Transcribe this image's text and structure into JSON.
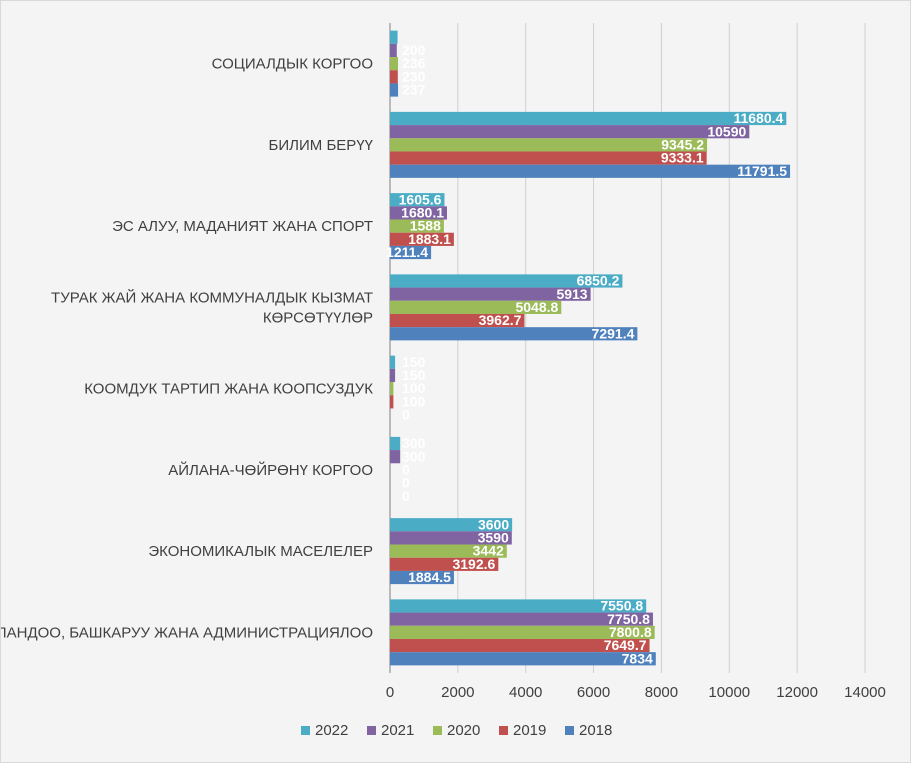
{
  "chart_data": {
    "type": "bar",
    "orientation": "horizontal",
    "categories": [
      "СОЦИАЛДЫК КОРГОО",
      "БИЛИМ БЕРҮҮ",
      "ЭС АЛУУ, МАДАНИЯТ ЖАНА СПОРТ",
      "ТУРАК ЖАЙ ЖАНА КОММУНАЛДЫК КЫЗМАТ КӨРСӨТҮҮЛӨР",
      "КООМДУК ТАРТИП ЖАНА КООПСУЗДУК",
      "АЙЛАНА-ЧӨЙРӨНҮ КОРГОО",
      "ЭКОНОМИКАЛЫК МАСЕЛЕЛЕР",
      "ПЛАНДОО, БАШКАРУУ ЖАНА АДМИНИСТРАЦИЯЛОО"
    ],
    "series": [
      {
        "name": "2022",
        "color": "#4bacc6",
        "values": [
          223,
          11680.4,
          1605.6,
          6850.2,
          150,
          300,
          3600,
          7550.8
        ],
        "labels": [
          "",
          "11680.4",
          "1605.6",
          "6850.2",
          "150",
          "300",
          "3600",
          "7550.8"
        ]
      },
      {
        "name": "2021",
        "color": "#8064a2",
        "values": [
          200,
          10590,
          1680.1,
          5913,
          150,
          300,
          3590,
          7750.8
        ],
        "labels": [
          "200",
          "10590",
          "1680.1",
          "5913",
          "150",
          "300",
          "3590",
          "7750.8"
        ]
      },
      {
        "name": "2020",
        "color": "#9bbb59",
        "values": [
          236,
          9345.2,
          1588,
          5048.8,
          100,
          0,
          3442,
          7800.8
        ],
        "labels": [
          "236",
          "9345.2",
          "1588",
          "5048.8",
          "100",
          "0",
          "3442",
          "7800.8"
        ]
      },
      {
        "name": "2019",
        "color": "#c0504d",
        "values": [
          230,
          9333.1,
          1883.1,
          3962.7,
          100,
          0,
          3192.6,
          7649.7
        ],
        "labels": [
          "230",
          "9333.1",
          "1883.1",
          "3962.7",
          "100",
          "0",
          "3192.6",
          "7649.7"
        ]
      },
      {
        "name": "2018",
        "color": "#4f81bd",
        "values": [
          237,
          11791.5,
          1211.4,
          7291.4,
          0,
          0,
          1884.5,
          7834
        ],
        "labels": [
          "237",
          "11791.5",
          "1211.4",
          "7291.4",
          "0",
          "0",
          "1884.5",
          "7834"
        ]
      }
    ],
    "xlim": [
      0,
      14000
    ],
    "xticks": [
      "0",
      "2000",
      "4000",
      "6000",
      "8000",
      "10000",
      "12000",
      "14000"
    ],
    "grid": true,
    "legend_position": "bottom",
    "legend_order": [
      "2022",
      "2021",
      "2020",
      "2019",
      "2018"
    ]
  }
}
